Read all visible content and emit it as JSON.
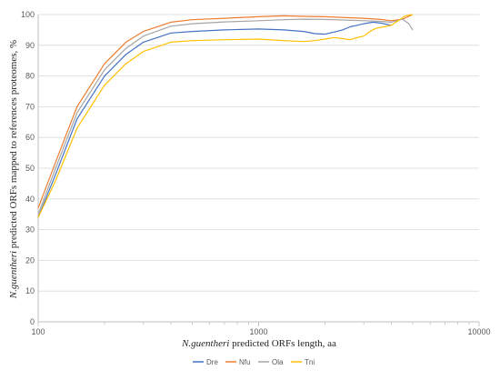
{
  "chart_data": {
    "type": "line",
    "title": "",
    "xlabel_italic": "N.guentheri",
    "xlabel_rest": " predicted ORFs length, aa",
    "ylabel_italic": "N.guentheri",
    "ylabel_rest": " predicted ORFs mapped to references proteomes, %",
    "x_scale": "log",
    "xlim": [
      100,
      10000
    ],
    "ylim": [
      0,
      100
    ],
    "x_ticks": [
      100,
      1000,
      10000
    ],
    "x_tick_labels": [
      "100",
      "1000",
      "10000"
    ],
    "y_ticks": [
      0,
      10,
      20,
      30,
      40,
      50,
      60,
      70,
      80,
      90,
      100
    ],
    "y_tick_labels": [
      "0",
      "10",
      "20",
      "30",
      "40",
      "50",
      "60",
      "70",
      "80",
      "90",
      "100"
    ],
    "grid": "horizontal",
    "legend_position": "bottom",
    "series": [
      {
        "name": "Dre",
        "color": "#4472C4",
        "x": [
          100,
          120,
          150,
          200,
          250,
          300,
          400,
          500,
          700,
          1000,
          1300,
          1600,
          1800,
          2000,
          2200,
          2400,
          2600,
          2800,
          3000,
          3300,
          3600,
          4000
        ],
        "y": [
          34,
          48,
          66,
          80,
          87,
          91,
          94,
          94.5,
          95,
          95.3,
          95,
          94.5,
          93.8,
          93.6,
          94.3,
          95,
          96,
          96.5,
          97,
          97.5,
          97.2,
          96.5
        ]
      },
      {
        "name": "Nfu",
        "color": "#ED7D31",
        "x": [
          100,
          120,
          150,
          200,
          250,
          300,
          400,
          500,
          700,
          1000,
          1300,
          1600,
          2000,
          2500,
          3000,
          3500,
          4000,
          4500,
          5000
        ],
        "y": [
          37,
          52,
          70,
          84,
          91,
          94.5,
          97.5,
          98.3,
          98.8,
          99.3,
          99.6,
          99.4,
          99.3,
          99,
          98.8,
          98.5,
          98,
          98.5,
          100
        ]
      },
      {
        "name": "Ola",
        "color": "#A5A5A5",
        "x": [
          100,
          120,
          150,
          200,
          250,
          300,
          400,
          500,
          700,
          1000,
          1300,
          1600,
          2000,
          2500,
          3000,
          3500,
          4000,
          4500,
          4800,
          5000
        ],
        "y": [
          35,
          50,
          68,
          82,
          89,
          93,
          96.2,
          97,
          97.6,
          98,
          98.3,
          98.5,
          98.4,
          98.2,
          98,
          97.8,
          97.5,
          98.5,
          97,
          95
        ]
      },
      {
        "name": "Tni",
        "color": "#FFC000",
        "x": [
          100,
          120,
          150,
          200,
          250,
          300,
          400,
          500,
          700,
          1000,
          1300,
          1600,
          1800,
          2000,
          2200,
          2400,
          2600,
          2800,
          3000,
          3200,
          3400,
          3700,
          4000,
          4300,
          4600,
          5000
        ],
        "y": [
          34,
          46,
          63,
          77,
          84,
          88,
          91,
          91.5,
          91.8,
          92,
          91.5,
          91.2,
          91.5,
          92,
          92.5,
          92.2,
          91.8,
          92.5,
          93,
          94.5,
          95.5,
          96,
          96.5,
          98,
          99.5,
          100
        ]
      }
    ]
  }
}
